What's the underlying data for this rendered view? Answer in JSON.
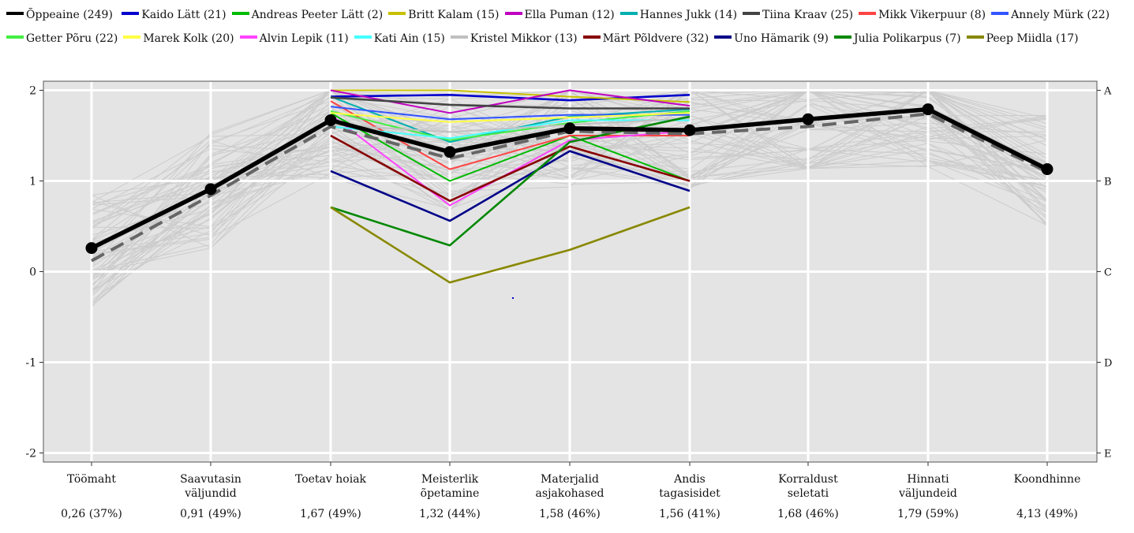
{
  "chart_data": {
    "type": "line",
    "categories": [
      "Töömaht",
      "Saavutasin\nväljundid",
      "Toetav hoiak",
      "Meisterlik\nõpetamine",
      "Materjalid\nasjakohased",
      "Andis\ntagasisidet",
      "Korraldust\nseletati",
      "Hinnati\nväljundeid",
      "Koondhinne"
    ],
    "category_stats": [
      "0,26 (37%)",
      "0,91 (49%)",
      "1,67 (49%)",
      "1,32 (44%)",
      "1,58 (46%)",
      "1,56 (41%)",
      "1,68 (46%)",
      "1,79 (59%)",
      "4,13 (49%)"
    ],
    "ylim": [
      -2.1,
      2.1
    ],
    "left_ticks": [
      "2",
      "1",
      "0",
      "-1",
      "-2"
    ],
    "left_tick_values": [
      2,
      1,
      0,
      -1,
      -2
    ],
    "right_ticks": [
      "A",
      "B",
      "C",
      "D",
      "E"
    ],
    "right_tick_values": [
      2,
      1,
      0,
      -1,
      -2
    ],
    "grid": true,
    "legend_position": "top",
    "main_series": {
      "name": "Õppeaine (249)",
      "color": "#000000",
      "values": [
        0.26,
        0.91,
        1.67,
        1.32,
        1.58,
        1.56,
        1.68,
        1.79,
        1.13
      ]
    },
    "dashed_series": {
      "color": "#666666",
      "values": [
        0.12,
        0.84,
        1.6,
        1.25,
        1.55,
        1.52,
        1.6,
        1.74,
        1.1
      ]
    },
    "series": [
      {
        "name": "Kaido Lätt (21)",
        "color": "#0000cc",
        "values": [
          null,
          null,
          1.93,
          1.95,
          1.89,
          1.95,
          null,
          null,
          null
        ]
      },
      {
        "name": "Andreas Peeter Lätt (2)",
        "color": "#00bb00",
        "values": [
          null,
          null,
          1.75,
          1.0,
          1.5,
          1.0,
          null,
          null,
          null
        ]
      },
      {
        "name": "Britt Kalam (15)",
        "color": "#c8c000",
        "values": [
          null,
          null,
          2.0,
          2.0,
          1.93,
          1.87,
          null,
          null,
          null
        ]
      },
      {
        "name": "Ella Puman (12)",
        "color": "#c000c0",
        "values": [
          null,
          null,
          2.0,
          1.75,
          2.0,
          1.83,
          null,
          null,
          null
        ]
      },
      {
        "name": "Hannes Jukk (14)",
        "color": "#00b0b0",
        "values": [
          null,
          null,
          1.93,
          1.43,
          1.71,
          1.79,
          null,
          null,
          null
        ]
      },
      {
        "name": "Tiina Kraav (25)",
        "color": "#444444",
        "values": [
          null,
          null,
          1.92,
          1.84,
          1.8,
          1.8,
          null,
          null,
          null
        ]
      },
      {
        "name": "Mikk Vikerpuur (8)",
        "color": "#ff4444",
        "values": [
          null,
          null,
          1.88,
          1.13,
          1.5,
          1.5,
          null,
          null,
          null
        ]
      },
      {
        "name": "Annely Mürk (22)",
        "color": "#3355ff",
        "values": [
          null,
          null,
          1.82,
          1.68,
          1.73,
          1.73,
          null,
          null,
          null
        ]
      },
      {
        "name": "Getter Põru (22)",
        "color": "#44ee44",
        "values": [
          null,
          null,
          1.77,
          1.45,
          1.64,
          1.77,
          null,
          null,
          null
        ]
      },
      {
        "name": "Marek Kolk (20)",
        "color": "#ffff44",
        "values": [
          null,
          null,
          1.75,
          1.65,
          1.7,
          1.75,
          null,
          null,
          null
        ]
      },
      {
        "name": "Alvin Lepik (11)",
        "color": "#ff44ff",
        "values": [
          null,
          null,
          1.73,
          0.73,
          1.45,
          1.55,
          null,
          null,
          null
        ]
      },
      {
        "name": "Kati Ain (15)",
        "color": "#44ffff",
        "values": [
          null,
          null,
          1.6,
          1.47,
          1.67,
          1.67,
          null,
          null,
          null
        ]
      },
      {
        "name": "Kristel Mikkor (13)",
        "color": "#c0c0c0",
        "values": [
          null,
          null,
          1.62,
          1.54,
          1.62,
          1.69,
          null,
          null,
          null
        ]
      },
      {
        "name": "Märt Põldvere (32)",
        "color": "#880000",
        "values": [
          null,
          null,
          1.5,
          0.78,
          1.38,
          1.0,
          null,
          null,
          null
        ]
      },
      {
        "name": "Uno Hämarik (9)",
        "color": "#000088",
        "values": [
          null,
          null,
          1.11,
          0.56,
          1.33,
          0.89,
          null,
          null,
          null
        ]
      },
      {
        "name": "Julia Polikarpus (7)",
        "color": "#008800",
        "values": [
          null,
          null,
          0.71,
          0.29,
          1.43,
          1.71,
          null,
          null,
          null
        ]
      },
      {
        "name": "Peep Miidla (17)",
        "color": "#888800",
        "values": [
          null,
          null,
          0.71,
          -0.12,
          0.24,
          0.71,
          null,
          null,
          null
        ]
      }
    ]
  }
}
